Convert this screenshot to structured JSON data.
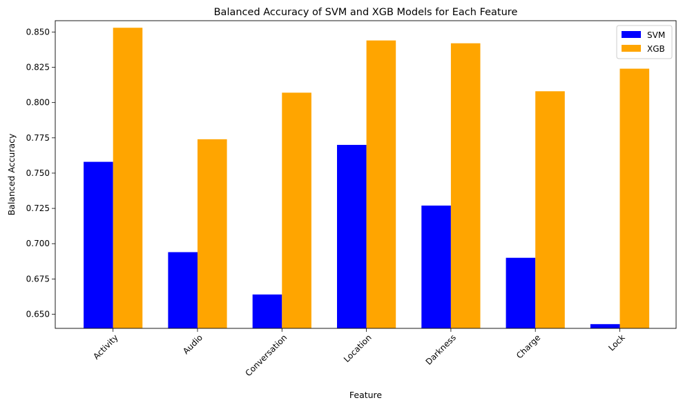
{
  "chart_data": {
    "type": "bar",
    "title": "Balanced Accuracy of SVM and XGB Models for Each Feature",
    "xlabel": "Feature",
    "ylabel": "Balanced Accuracy",
    "categories": [
      "Activity",
      "Audio",
      "Conversation",
      "Location",
      "Darkness",
      "Charge",
      "Lock"
    ],
    "series": [
      {
        "name": "SVM",
        "color": "#0000ff",
        "values": [
          0.758,
          0.694,
          0.664,
          0.77,
          0.727,
          0.69,
          0.643
        ]
      },
      {
        "name": "XGB",
        "color": "#ffa500",
        "values": [
          0.853,
          0.774,
          0.807,
          0.844,
          0.842,
          0.808,
          0.824
        ]
      }
    ],
    "ylim": [
      0.64,
      0.858
    ],
    "yticks": [
      "0.650",
      "0.675",
      "0.700",
      "0.725",
      "0.750",
      "0.775",
      "0.800",
      "0.825",
      "0.850"
    ],
    "grid": false,
    "legend_position": "top-right"
  }
}
